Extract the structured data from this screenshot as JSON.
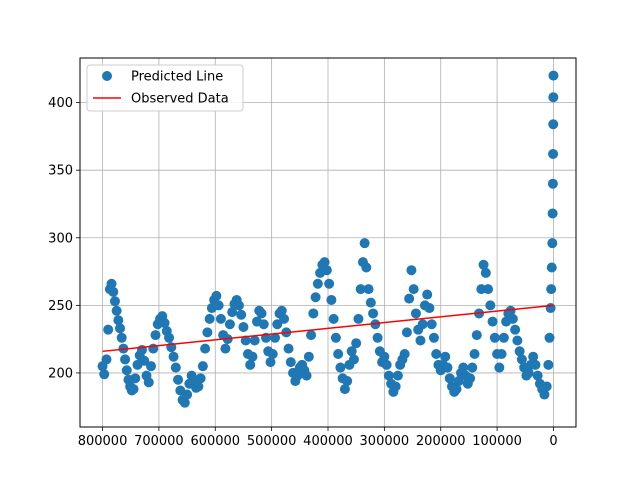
{
  "chart_data": {
    "type": "scatter",
    "x_axis": {
      "lim": [
        840000,
        -40000
      ],
      "inverted": true,
      "ticks": [
        800000,
        700000,
        600000,
        500000,
        400000,
        300000,
        200000,
        100000,
        0
      ],
      "tick_labels": [
        "800000",
        "700000",
        "600000",
        "500000",
        "400000",
        "300000",
        "200000",
        "100000",
        "0"
      ]
    },
    "y_axis": {
      "lim": [
        160,
        433
      ],
      "ticks": [
        200,
        250,
        300,
        350,
        400
      ],
      "tick_labels": [
        "200",
        "250",
        "300",
        "350",
        "400"
      ]
    },
    "grid": true,
    "legend": {
      "placement": "top-left",
      "entries": [
        {
          "label": "Predicted Line",
          "marker": "circle",
          "color": "#1f77b4"
        },
        {
          "label": "Observed Data",
          "marker": "line",
          "color": "#ff0000"
        }
      ]
    },
    "series": [
      {
        "name": "Predicted Line",
        "kind": "scatter",
        "color": "#1f77b4",
        "points": [
          [
            800000,
            205
          ],
          [
            797000,
            199
          ],
          [
            793000,
            210
          ],
          [
            790000,
            232
          ],
          [
            787000,
            262
          ],
          [
            784000,
            266
          ],
          [
            781000,
            260
          ],
          [
            778000,
            253
          ],
          [
            775000,
            246
          ],
          [
            772000,
            239
          ],
          [
            769000,
            233
          ],
          [
            766000,
            226
          ],
          [
            763000,
            218
          ],
          [
            760000,
            210
          ],
          [
            757000,
            202
          ],
          [
            754000,
            195
          ],
          [
            751000,
            190
          ],
          [
            748000,
            187
          ],
          [
            745000,
            188
          ],
          [
            742000,
            196
          ],
          [
            738000,
            206
          ],
          [
            734000,
            213
          ],
          [
            730000,
            217
          ],
          [
            726000,
            209
          ],
          [
            722000,
            198
          ],
          [
            718000,
            193
          ],
          [
            714000,
            205
          ],
          [
            710000,
            218
          ],
          [
            706000,
            228
          ],
          [
            702000,
            236
          ],
          [
            698000,
            240
          ],
          [
            694000,
            242
          ],
          [
            690000,
            237
          ],
          [
            686000,
            231
          ],
          [
            682000,
            226
          ],
          [
            678000,
            219
          ],
          [
            674000,
            212
          ],
          [
            670000,
            204
          ],
          [
            666000,
            195
          ],
          [
            662000,
            187
          ],
          [
            658000,
            180
          ],
          [
            654000,
            178
          ],
          [
            650000,
            184
          ],
          [
            646000,
            192
          ],
          [
            642000,
            198
          ],
          [
            638000,
            195
          ],
          [
            634000,
            189
          ],
          [
            630000,
            190
          ],
          [
            626000,
            196
          ],
          [
            622000,
            205
          ],
          [
            618000,
            218
          ],
          [
            614000,
            230
          ],
          [
            610000,
            240
          ],
          [
            606000,
            248
          ],
          [
            602000,
            254
          ],
          [
            598000,
            257
          ],
          [
            594000,
            250
          ],
          [
            590000,
            240
          ],
          [
            586000,
            228
          ],
          [
            582000,
            218
          ],
          [
            578000,
            225
          ],
          [
            574000,
            236
          ],
          [
            570000,
            245
          ],
          [
            566000,
            251
          ],
          [
            562000,
            254
          ],
          [
            558000,
            250
          ],
          [
            554000,
            243
          ],
          [
            550000,
            234
          ],
          [
            546000,
            224
          ],
          [
            542000,
            214
          ],
          [
            538000,
            206
          ],
          [
            534000,
            212
          ],
          [
            530000,
            224
          ],
          [
            526000,
            238
          ],
          [
            522000,
            246
          ],
          [
            518000,
            244
          ],
          [
            514000,
            236
          ],
          [
            510000,
            226
          ],
          [
            506000,
            216
          ],
          [
            502000,
            208
          ],
          [
            498000,
            214
          ],
          [
            494000,
            226
          ],
          [
            490000,
            236
          ],
          [
            486000,
            244
          ],
          [
            482000,
            246
          ],
          [
            478000,
            240
          ],
          [
            474000,
            230
          ],
          [
            470000,
            218
          ],
          [
            466000,
            208
          ],
          [
            462000,
            200
          ],
          [
            458000,
            194
          ],
          [
            454000,
            198
          ],
          [
            450000,
            204
          ],
          [
            446000,
            206
          ],
          [
            442000,
            202
          ],
          [
            438000,
            198
          ],
          [
            434000,
            212
          ],
          [
            430000,
            228
          ],
          [
            426000,
            244
          ],
          [
            422000,
            256
          ],
          [
            418000,
            266
          ],
          [
            414000,
            274
          ],
          [
            410000,
            280
          ],
          [
            406000,
            282
          ],
          [
            402000,
            276
          ],
          [
            398000,
            266
          ],
          [
            394000,
            254
          ],
          [
            390000,
            240
          ],
          [
            386000,
            226
          ],
          [
            382000,
            214
          ],
          [
            378000,
            204
          ],
          [
            374000,
            196
          ],
          [
            370000,
            188
          ],
          [
            366000,
            194
          ],
          [
            362000,
            206
          ],
          [
            358000,
            216
          ],
          [
            354000,
            210
          ],
          [
            350000,
            222
          ],
          [
            346000,
            240
          ],
          [
            342000,
            262
          ],
          [
            338000,
            282
          ],
          [
            335000,
            296
          ],
          [
            332000,
            278
          ],
          [
            328000,
            262
          ],
          [
            324000,
            252
          ],
          [
            320000,
            244
          ],
          [
            316000,
            236
          ],
          [
            312000,
            226
          ],
          [
            308000,
            216
          ],
          [
            304000,
            208
          ],
          [
            300000,
            212
          ],
          [
            296000,
            206
          ],
          [
            292000,
            198
          ],
          [
            288000,
            192
          ],
          [
            284000,
            186
          ],
          [
            280000,
            190
          ],
          [
            276000,
            198
          ],
          [
            272000,
            206
          ],
          [
            268000,
            210
          ],
          [
            264000,
            214
          ],
          [
            260000,
            230
          ],
          [
            256000,
            255
          ],
          [
            252000,
            276
          ],
          [
            248000,
            262
          ],
          [
            244000,
            244
          ],
          [
            240000,
            232
          ],
          [
            236000,
            224
          ],
          [
            232000,
            236
          ],
          [
            228000,
            250
          ],
          [
            224000,
            258
          ],
          [
            220000,
            248
          ],
          [
            216000,
            236
          ],
          [
            212000,
            226
          ],
          [
            208000,
            214
          ],
          [
            204000,
            206
          ],
          [
            200000,
            202
          ],
          [
            196000,
            206
          ],
          [
            192000,
            212
          ],
          [
            188000,
            204
          ],
          [
            184000,
            196
          ],
          [
            180000,
            190
          ],
          [
            176000,
            186
          ],
          [
            172000,
            188
          ],
          [
            168000,
            194
          ],
          [
            164000,
            200
          ],
          [
            160000,
            204
          ],
          [
            156000,
            198
          ],
          [
            152000,
            192
          ],
          [
            148000,
            196
          ],
          [
            144000,
            204
          ],
          [
            140000,
            214
          ],
          [
            136000,
            228
          ],
          [
            132000,
            244
          ],
          [
            128000,
            262
          ],
          [
            124000,
            280
          ],
          [
            120000,
            274
          ],
          [
            116000,
            262
          ],
          [
            112000,
            250
          ],
          [
            108000,
            238
          ],
          [
            104000,
            226
          ],
          [
            100000,
            214
          ],
          [
            96000,
            204
          ],
          [
            92000,
            214
          ],
          [
            88000,
            226
          ],
          [
            84000,
            238
          ],
          [
            80000,
            244
          ],
          [
            76000,
            246
          ],
          [
            72000,
            240
          ],
          [
            68000,
            232
          ],
          [
            64000,
            224
          ],
          [
            60000,
            216
          ],
          [
            56000,
            210
          ],
          [
            52000,
            204
          ],
          [
            48000,
            198
          ],
          [
            44000,
            200
          ],
          [
            40000,
            206
          ],
          [
            36000,
            212
          ],
          [
            32000,
            206
          ],
          [
            28000,
            198
          ],
          [
            24000,
            192
          ],
          [
            20000,
            188
          ],
          [
            16000,
            184
          ],
          [
            12000,
            190
          ],
          [
            9000,
            206
          ],
          [
            7000,
            226
          ],
          [
            5000,
            248
          ],
          [
            4000,
            262
          ],
          [
            3000,
            278
          ],
          [
            2000,
            296
          ],
          [
            1500,
            318
          ],
          [
            1000,
            340
          ],
          [
            700,
            362
          ],
          [
            400,
            384
          ],
          [
            200,
            404
          ],
          [
            0,
            420
          ]
        ]
      },
      {
        "name": "Observed Data",
        "kind": "line",
        "color": "#ff0000",
        "points": [
          [
            800000,
            216
          ],
          [
            0,
            250
          ]
        ]
      }
    ]
  }
}
